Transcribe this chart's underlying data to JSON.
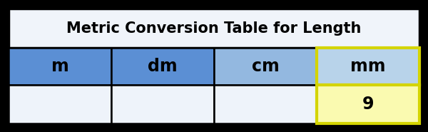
{
  "title": "Metric Conversion Table for Length",
  "columns": [
    "m",
    "dm",
    "cm",
    "mm"
  ],
  "data_row": [
    "",
    "",
    "",
    "9"
  ],
  "title_bg": "#f0f4fa",
  "header_colors": [
    "#5b8fd4",
    "#5b8fd4",
    "#93b8e0",
    "#b8d3ea"
  ],
  "data_colors": [
    "#eef3fa",
    "#eef3fa",
    "#eef3fa",
    "#fafab0"
  ],
  "highlight_border_color": "#d4d400",
  "outer_bg": "#000000",
  "inner_bg": "#ffffff",
  "border_color": "#000000",
  "title_fontsize": 15,
  "cell_fontsize": 17,
  "figsize": [
    6.0,
    1.85
  ],
  "dpi": 100
}
